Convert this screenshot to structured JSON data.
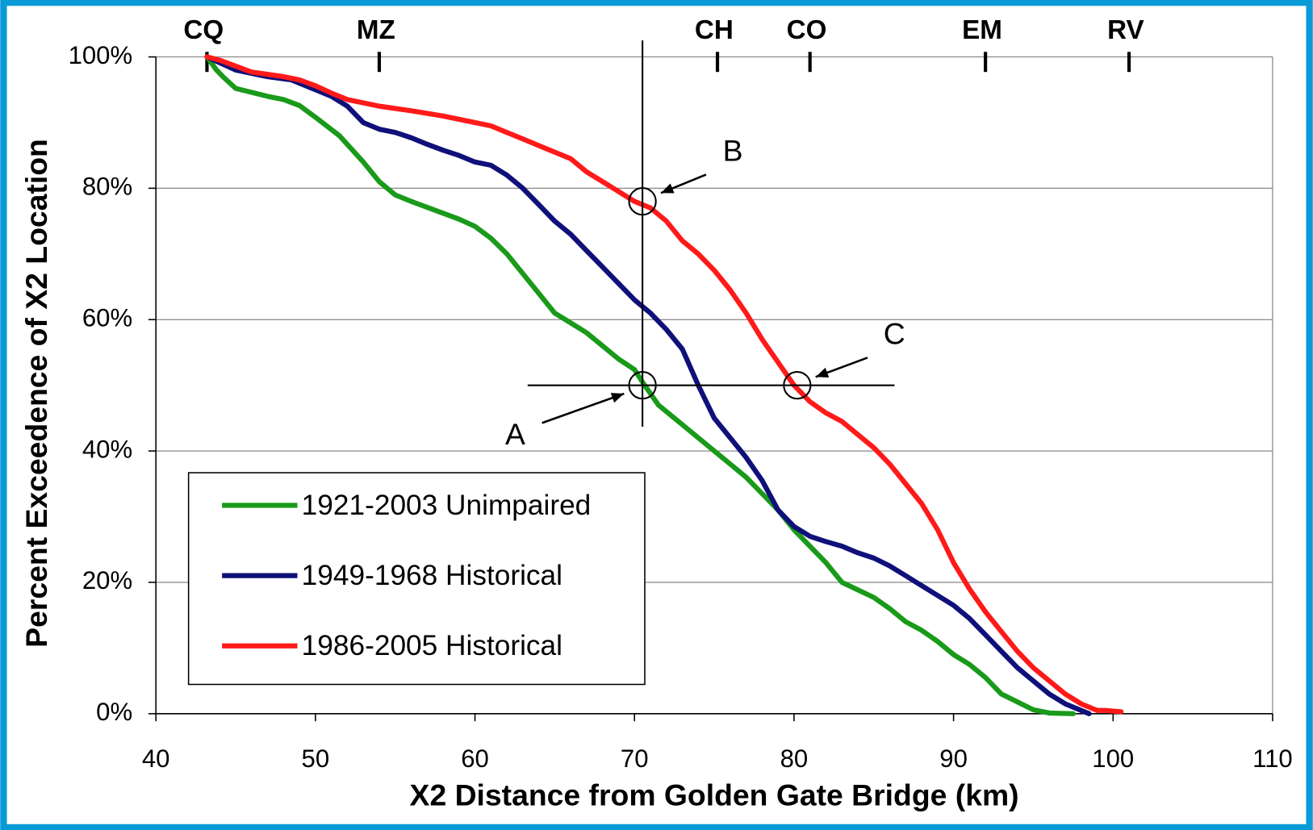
{
  "chart_data": {
    "type": "line",
    "xlabel": "X2 Distance from Golden Gate Bridge (km)",
    "ylabel": "Percent Exceedence of X2 Location",
    "xlim": [
      40,
      110
    ],
    "ylim": [
      0,
      100
    ],
    "xticks": [
      40,
      50,
      60,
      70,
      80,
      90,
      100,
      110
    ],
    "yticks": [
      {
        "value": 0,
        "label": "0%"
      },
      {
        "value": 20,
        "label": "20%"
      },
      {
        "value": 40,
        "label": "40%"
      },
      {
        "value": 60,
        "label": "60%"
      },
      {
        "value": 80,
        "label": "80%"
      },
      {
        "value": 100,
        "label": "100%"
      }
    ],
    "grid": true,
    "legend": "lower left",
    "stations": [
      {
        "label": "CQ",
        "x": 43.2
      },
      {
        "label": "MZ",
        "x": 54
      },
      {
        "label": "CH",
        "x": 75.2
      },
      {
        "label": "CO",
        "x": 81
      },
      {
        "label": "EM",
        "x": 92
      },
      {
        "label": "RV",
        "x": 101
      }
    ],
    "crosshair": {
      "x": 70.5,
      "y": 50,
      "xrange": [
        63.3,
        86.3
      ],
      "yrange": [
        43.7,
        102.5
      ]
    },
    "annotations": [
      {
        "label": "A",
        "x": 70.5,
        "y": 50
      },
      {
        "label": "B",
        "x": 70.5,
        "y": 78
      },
      {
        "label": "C",
        "x": 80.2,
        "y": 50
      }
    ],
    "series": [
      {
        "name": "1921-2003 Unimpaired",
        "color": "#1a9a1a",
        "x": [
          43.2,
          43.8,
          44.2,
          45,
          47,
          48,
          49,
          50,
          51.5,
          53,
          54,
          55,
          56,
          58,
          59,
          60,
          61,
          62,
          63,
          64,
          65,
          66,
          67,
          68,
          69,
          70,
          70.5,
          71.5,
          73,
          75,
          76,
          77,
          78,
          79,
          80,
          81,
          82,
          83,
          85,
          86,
          87,
          88,
          89,
          90,
          91,
          92,
          93,
          94,
          95,
          96,
          97.5
        ],
        "values": [
          100,
          98,
          97,
          95.2,
          94,
          93.5,
          92.6,
          90.8,
          88,
          84,
          81,
          79,
          78,
          76.2,
          75.3,
          74.2,
          72.4,
          70,
          67,
          64,
          61,
          59.5,
          58,
          56,
          54,
          52.4,
          50.5,
          47,
          44,
          40,
          38,
          36,
          33.5,
          31,
          28,
          25.5,
          23,
          20,
          17.7,
          16,
          14,
          12.7,
          11,
          9,
          7.5,
          5.5,
          3,
          1.8,
          0.6,
          0.1,
          0
        ]
      },
      {
        "name": "1949-1968 Historical",
        "color": "#10107a",
        "x": [
          43.2,
          45,
          47,
          48.5,
          50,
          51,
          52,
          53,
          54,
          55,
          56,
          57,
          58,
          59,
          60,
          61,
          62,
          63,
          64,
          65,
          66,
          67,
          68,
          69,
          70,
          71,
          72,
          73,
          74,
          75,
          76,
          77,
          78,
          79,
          80,
          81,
          82,
          83,
          84,
          85,
          86,
          87,
          88,
          89,
          90,
          91,
          92,
          93,
          94,
          95,
          96,
          97,
          98,
          98.5
        ],
        "values": [
          100,
          98,
          97,
          96.5,
          95,
          94,
          92.5,
          90,
          89,
          88.5,
          87.7,
          86.7,
          85.8,
          85,
          84,
          83.5,
          82,
          80,
          77.5,
          75,
          73,
          70.5,
          68,
          65.5,
          63,
          61,
          58.5,
          55.5,
          50,
          45,
          42,
          39,
          35.5,
          31,
          28.5,
          27,
          26.2,
          25.5,
          24.5,
          23.7,
          22.5,
          21,
          19.5,
          18,
          16.5,
          14.5,
          12,
          9.5,
          7,
          5,
          3,
          1.5,
          0.5,
          0
        ]
      },
      {
        "name": "1986-2005 Historical",
        "color": "#ff1a1a",
        "x": [
          43.2,
          44,
          46,
          48,
          49,
          50,
          51,
          52,
          54,
          56,
          58,
          60,
          61,
          62,
          63,
          64,
          65,
          66,
          67,
          68,
          69,
          70,
          71,
          72,
          73,
          74,
          75,
          76,
          77,
          78,
          79,
          80,
          81,
          82,
          83,
          84,
          85,
          86,
          87,
          88,
          89,
          90,
          91,
          92,
          93,
          94,
          95,
          96,
          97,
          98,
          99,
          99.5,
          100,
          100.5
        ],
        "values": [
          100,
          99.5,
          97.7,
          97,
          96.5,
          95.6,
          94.5,
          93.5,
          92.5,
          91.8,
          91,
          90,
          89.5,
          88.5,
          87.5,
          86.5,
          85.5,
          84.5,
          82.5,
          81,
          79.5,
          78,
          77,
          75,
          72,
          70,
          67.5,
          64.5,
          61,
          57,
          53.5,
          50,
          47.5,
          45.8,
          44.5,
          42.5,
          40.5,
          38,
          35,
          32,
          28,
          23,
          19,
          15.5,
          12.5,
          9.5,
          7,
          5,
          3,
          1.5,
          0.5,
          0.5,
          0.4,
          0.3
        ]
      }
    ]
  }
}
